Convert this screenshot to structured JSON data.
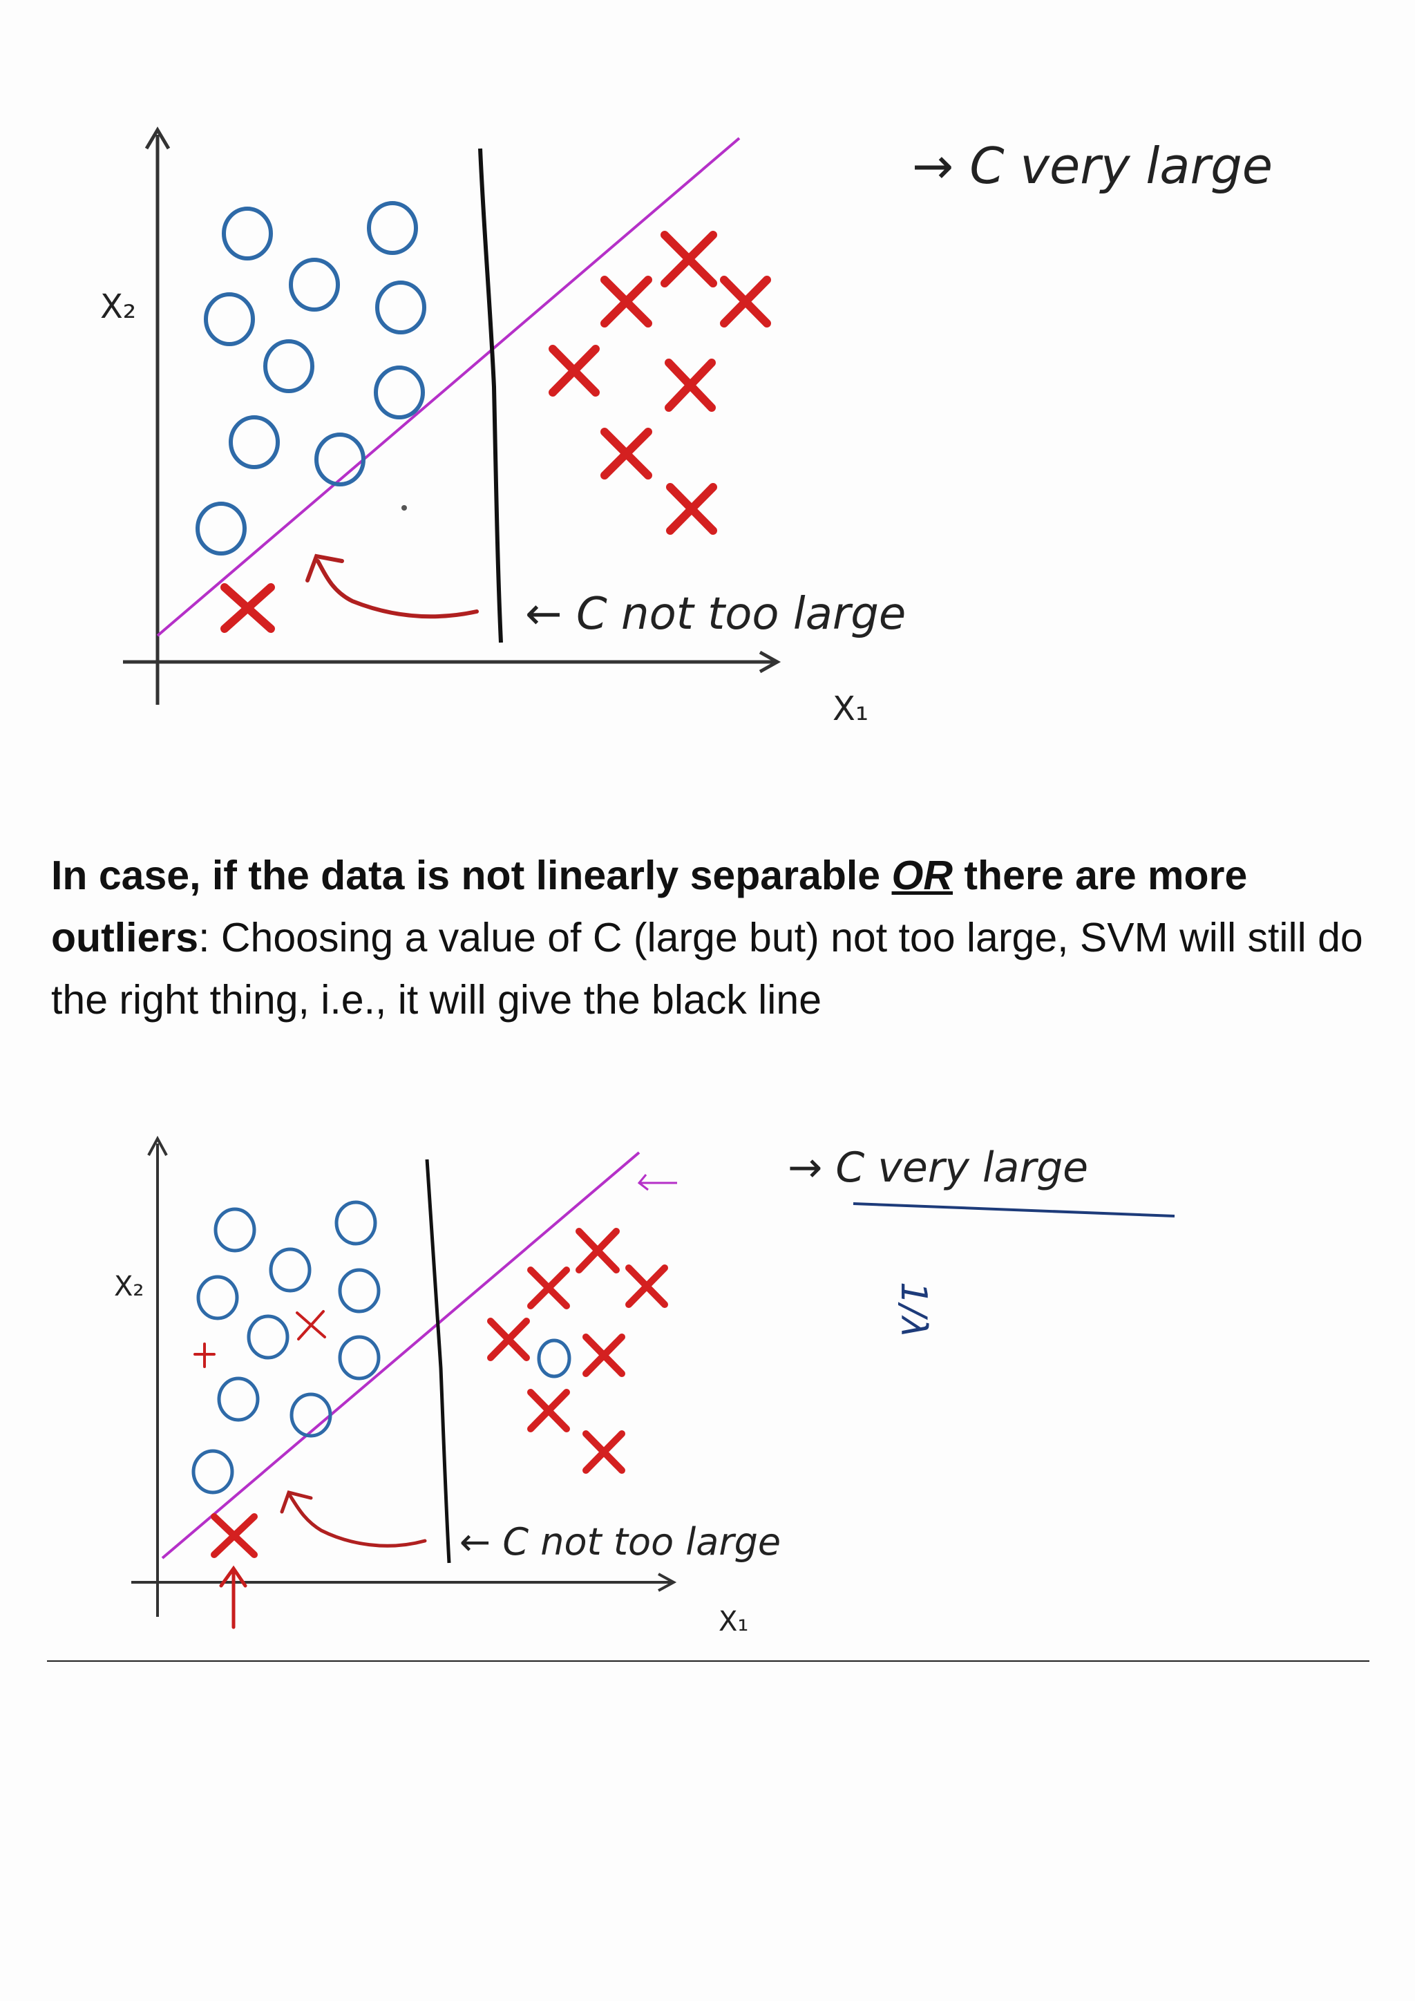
{
  "figure1": {
    "x2_label": "X₂",
    "x1_label": "X₁",
    "c_very_large": "→ C  very  large",
    "c_not_too_large": "← C  not  too  large"
  },
  "caption": {
    "bold_part1": "In case, if the data is not linearly separable ",
    "or_word": "OR",
    "bold_part2": " there are more outliers",
    "colon": ":",
    "rest": " Choosing a value of C (large but) not too large, SVM will still do the right thing, i.e., it will give the black line"
  },
  "figure2": {
    "x2_label": "X₂",
    "x1_label": "X₁",
    "c_very_large": "→ C  very  large",
    "c_not_too_large": "← C  not  too  large",
    "inverse_lambda": "1/λ"
  },
  "colors": {
    "positive_x": "#d42020",
    "negative_o": "#2e6aa8",
    "magenta_boundary": "#b530c8",
    "black_boundary": "#111111",
    "annotation_red": "#c81e1e",
    "blue_underline": "#1d3b7a"
  }
}
